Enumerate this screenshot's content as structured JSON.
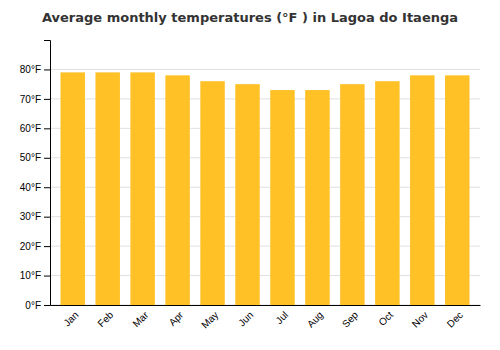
{
  "chart_data": {
    "type": "bar",
    "title": "Average monthly temperatures (°F ) in Lagoa do Itaenga",
    "categories": [
      "Jan",
      "Feb",
      "Mar",
      "Apr",
      "May",
      "Jun",
      "Jul",
      "Aug",
      "Sep",
      "Oct",
      "Nov",
      "Dec"
    ],
    "values": [
      79,
      79,
      79,
      78,
      76,
      75,
      73,
      73,
      75,
      76,
      78,
      78
    ],
    "color": "#FFC125",
    "ylim": [
      0,
      90
    ],
    "yticks": [
      {
        "value": 0,
        "label": "0°F"
      },
      {
        "value": 10,
        "label": "10°F"
      },
      {
        "value": 20,
        "label": "20°F"
      },
      {
        "value": 30,
        "label": "30°F"
      },
      {
        "value": 40,
        "label": "40°F"
      },
      {
        "value": 50,
        "label": "50°F"
      },
      {
        "value": 60,
        "label": "60°F"
      },
      {
        "value": 70,
        "label": "70°F"
      },
      {
        "value": 80,
        "label": "80°F"
      }
    ],
    "grid": true
  }
}
